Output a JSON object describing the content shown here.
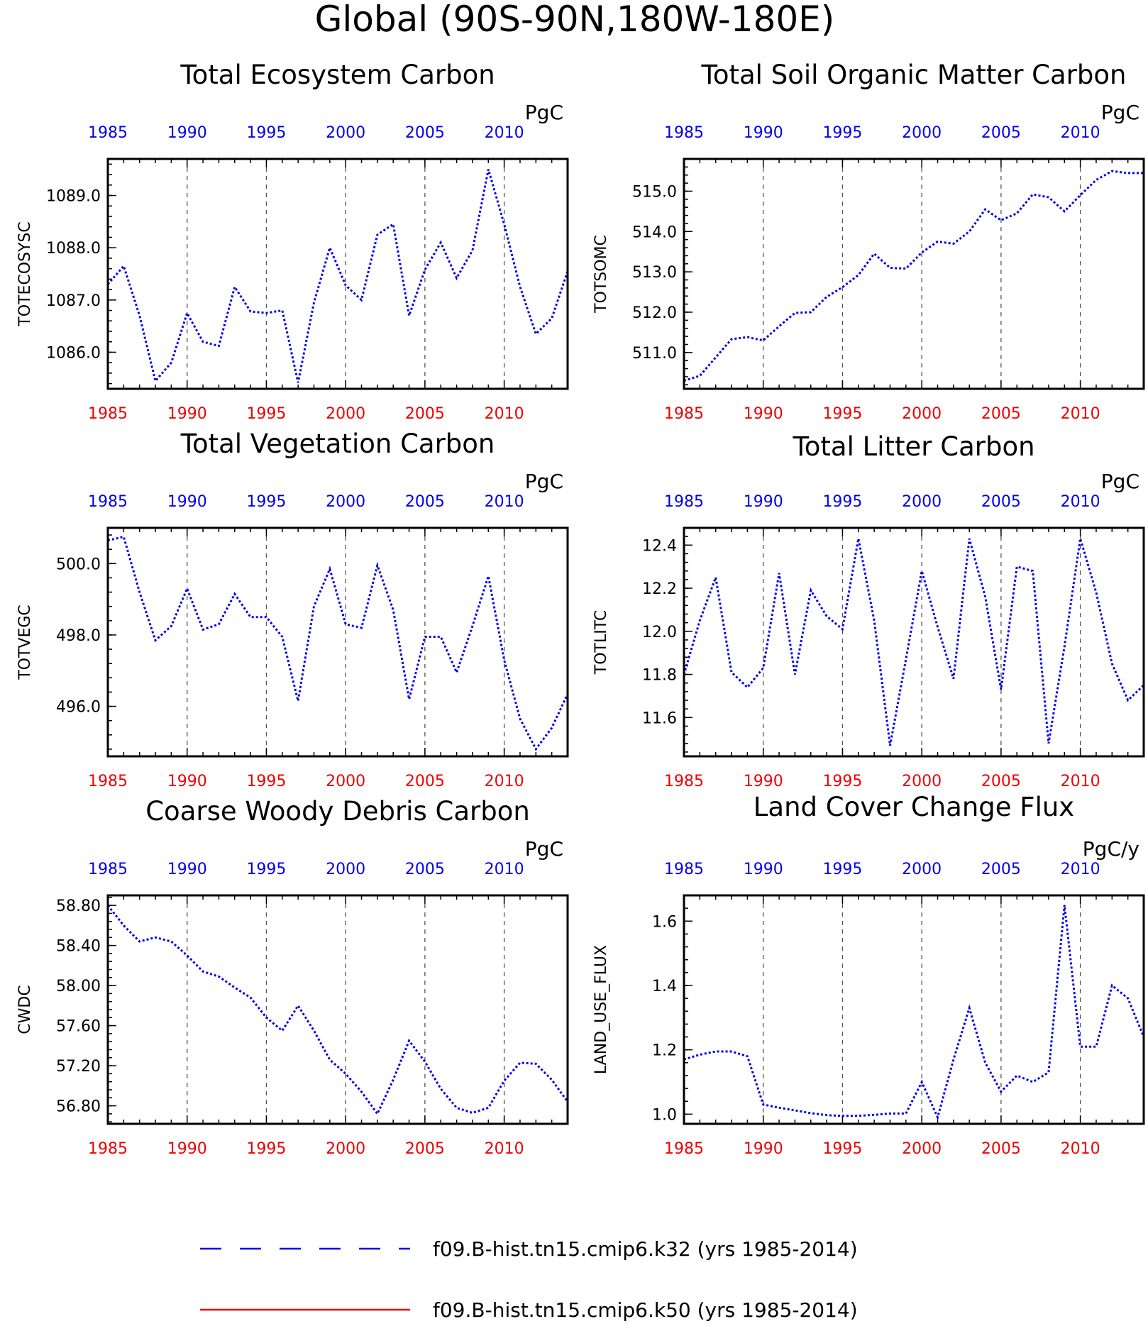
{
  "page": {
    "title": "Global (90S-90N,180W-180E)"
  },
  "colors": {
    "series_primary": "#0000ee",
    "series_secondary": "#ee0000",
    "top_ticks": "#0000ee",
    "bottom_ticks": "#ee0000"
  },
  "legend": [
    {
      "label": "f09.B-hist.tn15.cmip6.k32 (yrs 1985-2014)",
      "color": "#0000ee",
      "style": "dashed"
    },
    {
      "label": "f09.B-hist.tn15.cmip6.k50 (yrs 1985-2014)",
      "color": "#ee0000",
      "style": "solid"
    }
  ],
  "chart_data": [
    {
      "type": "line",
      "title": "Total Ecosystem Carbon",
      "units": "PgC",
      "ylabel": "TOTECOSYSC",
      "xlim": [
        1985,
        2014
      ],
      "ylim": [
        1085.3,
        1089.7
      ],
      "yticks": [
        1086.0,
        1087.0,
        1088.0,
        1089.0
      ],
      "ytick_labels": [
        "1086.0",
        "1087.0",
        "1088.0",
        "1089.0"
      ],
      "yminor": 0.2,
      "xticks": [
        1985,
        1990,
        1995,
        2000,
        2005,
        2010
      ],
      "xtick_labels": [
        "1985",
        "1990",
        "1995",
        "2000",
        "2005",
        "2010"
      ],
      "grid": "vertical dashed at major x ticks",
      "series": [
        {
          "x": [
            1985,
            1986,
            1987,
            1988,
            1989,
            1990,
            1991,
            1992,
            1993,
            1994,
            1995,
            1996,
            1997,
            1998,
            1999,
            2000,
            2001,
            2002,
            2003,
            2004,
            2005,
            2006,
            2007,
            2008,
            2009,
            2010,
            2011,
            2012,
            2013,
            2014
          ],
          "values": [
            1087.3,
            1087.65,
            1086.7,
            1085.45,
            1085.8,
            1086.75,
            1086.2,
            1086.12,
            1087.25,
            1086.78,
            1086.75,
            1086.8,
            1085.42,
            1086.95,
            1088.0,
            1087.28,
            1087.0,
            1088.25,
            1088.45,
            1086.7,
            1087.58,
            1088.1,
            1087.42,
            1087.95,
            1089.5,
            1088.45,
            1087.25,
            1086.35,
            1086.65,
            1087.55
          ]
        }
      ]
    },
    {
      "type": "line",
      "title": "Total Soil Organic Matter Carbon",
      "units": "PgC",
      "ylabel": "TOTSOMC",
      "xlim": [
        1985,
        2014
      ],
      "ylim": [
        510.1,
        515.8
      ],
      "yticks": [
        511.0,
        512.0,
        513.0,
        514.0,
        515.0
      ],
      "ytick_labels": [
        "511.0",
        "512.0",
        "513.0",
        "514.0",
        "515.0"
      ],
      "yminor": 0.2,
      "xticks": [
        1985,
        1990,
        1995,
        2000,
        2005,
        2010
      ],
      "xtick_labels": [
        "1985",
        "1990",
        "1995",
        "2000",
        "2005",
        "2010"
      ],
      "grid": "vertical dashed at major x ticks",
      "series": [
        {
          "x": [
            1985,
            1986,
            1987,
            1988,
            1989,
            1990,
            1991,
            1992,
            1993,
            1994,
            1995,
            1996,
            1997,
            1998,
            1999,
            2000,
            2001,
            2002,
            2003,
            2004,
            2005,
            2006,
            2007,
            2008,
            2009,
            2010,
            2011,
            2012,
            2013,
            2014
          ],
          "values": [
            510.3,
            510.42,
            510.88,
            511.33,
            511.38,
            511.3,
            511.65,
            511.98,
            512.0,
            512.38,
            512.62,
            512.92,
            513.45,
            513.1,
            513.08,
            513.48,
            513.75,
            513.7,
            514.0,
            514.55,
            514.28,
            514.45,
            514.92,
            514.85,
            514.5,
            514.9,
            515.28,
            515.5,
            515.45,
            515.45
          ]
        }
      ]
    },
    {
      "type": "line",
      "title": "Total Vegetation Carbon",
      "units": "PgC",
      "ylabel": "TOTVEGC",
      "xlim": [
        1985,
        2014
      ],
      "ylim": [
        494.6,
        501.0
      ],
      "yticks": [
        496.0,
        498.0,
        500.0
      ],
      "ytick_labels": [
        "496.0",
        "498.0",
        "500.0"
      ],
      "yminor": 0.4,
      "xticks": [
        1985,
        1990,
        1995,
        2000,
        2005,
        2010
      ],
      "xtick_labels": [
        "1985",
        "1990",
        "1995",
        "2000",
        "2005",
        "2010"
      ],
      "grid": "vertical dashed at major x ticks",
      "series": [
        {
          "x": [
            1985,
            1986,
            1987,
            1988,
            1989,
            1990,
            1991,
            1992,
            1993,
            1994,
            1995,
            1996,
            1997,
            1998,
            1999,
            2000,
            2001,
            2002,
            2003,
            2004,
            2005,
            2006,
            2007,
            2008,
            2009,
            2010,
            2011,
            2012,
            2013,
            2014
          ],
          "values": [
            500.65,
            500.75,
            499.2,
            497.85,
            498.25,
            499.3,
            498.15,
            498.3,
            499.15,
            498.5,
            498.5,
            497.95,
            496.15,
            498.8,
            499.85,
            498.3,
            498.2,
            499.95,
            498.7,
            496.2,
            497.95,
            497.95,
            496.95,
            498.25,
            499.65,
            497.3,
            495.65,
            494.8,
            495.4,
            496.35
          ]
        }
      ]
    },
    {
      "type": "line",
      "title": "Total Litter Carbon",
      "units": "PgC",
      "ylabel": "TOTLITC",
      "xlim": [
        1985,
        2014
      ],
      "ylim": [
        11.42,
        12.48
      ],
      "yticks": [
        11.6,
        11.8,
        12.0,
        12.2,
        12.4
      ],
      "ytick_labels": [
        "11.6",
        "11.8",
        "12.0",
        "12.2",
        "12.4"
      ],
      "yminor": 0.04,
      "xticks": [
        1985,
        1990,
        1995,
        2000,
        2005,
        2010
      ],
      "xtick_labels": [
        "1985",
        "1990",
        "1995",
        "2000",
        "2005",
        "2010"
      ],
      "grid": "vertical dashed at major x ticks",
      "series": [
        {
          "x": [
            1985,
            1986,
            1987,
            1988,
            1989,
            1990,
            1991,
            1992,
            1993,
            1994,
            1995,
            1996,
            1997,
            1998,
            1999,
            2000,
            2001,
            2002,
            2003,
            2004,
            2005,
            2006,
            2007,
            2008,
            2009,
            2010,
            2011,
            2012,
            2013,
            2014
          ],
          "values": [
            11.8,
            12.05,
            12.25,
            11.81,
            11.74,
            11.83,
            12.27,
            11.8,
            12.19,
            12.07,
            12.01,
            12.43,
            12.05,
            11.47,
            11.87,
            12.28,
            12.02,
            11.78,
            12.43,
            12.16,
            11.73,
            12.3,
            12.28,
            11.48,
            11.93,
            12.43,
            12.18,
            11.85,
            11.68,
            11.75
          ]
        }
      ]
    },
    {
      "type": "line",
      "title": "Coarse Woody Debris Carbon",
      "units": "PgC",
      "ylabel": "CWDC",
      "xlim": [
        1985,
        2014
      ],
      "ylim": [
        56.62,
        58.9
      ],
      "yticks": [
        56.8,
        57.2,
        57.6,
        58.0,
        58.4,
        58.8
      ],
      "ytick_labels": [
        "56.80",
        "57.20",
        "57.60",
        "58.00",
        "58.40",
        "58.80"
      ],
      "yminor": 0.08,
      "xticks": [
        1985,
        1990,
        1995,
        2000,
        2005,
        2010
      ],
      "xtick_labels": [
        "1985",
        "1990",
        "1995",
        "2000",
        "2005",
        "2010"
      ],
      "grid": "vertical dashed at major x ticks",
      "series": [
        {
          "x": [
            1985,
            1986,
            1987,
            1988,
            1989,
            1990,
            1991,
            1992,
            1993,
            1994,
            1995,
            1996,
            1997,
            1998,
            1999,
            2000,
            2001,
            2002,
            2003,
            2004,
            2005,
            2006,
            2007,
            2008,
            2009,
            2010,
            2011,
            2012,
            2013,
            2014
          ],
          "values": [
            58.8,
            58.6,
            58.44,
            58.48,
            58.44,
            58.3,
            58.14,
            58.09,
            57.98,
            57.88,
            57.68,
            57.55,
            57.8,
            57.55,
            57.26,
            57.12,
            56.94,
            56.72,
            57.06,
            57.45,
            57.24,
            56.97,
            56.78,
            56.73,
            56.78,
            57.05,
            57.23,
            57.22,
            57.06,
            56.84
          ]
        }
      ]
    },
    {
      "type": "line",
      "title": "Land Cover Change Flux",
      "units": "PgC/y",
      "ylabel": "LAND_USE_FLUX",
      "xlim": [
        1985,
        2014
      ],
      "ylim": [
        0.97,
        1.68
      ],
      "yticks": [
        1.0,
        1.2,
        1.4,
        1.6
      ],
      "ytick_labels": [
        "1.0",
        "1.2",
        "1.4",
        "1.6"
      ],
      "yminor": 0.04,
      "xticks": [
        1985,
        1990,
        1995,
        2000,
        2005,
        2010
      ],
      "xtick_labels": [
        "1985",
        "1990",
        "1995",
        "2000",
        "2005",
        "2010"
      ],
      "grid": "vertical dashed at major x ticks",
      "series": [
        {
          "x": [
            1985,
            1986,
            1987,
            1988,
            1989,
            1990,
            1991,
            1992,
            1993,
            1994,
            1995,
            1996,
            1997,
            1998,
            1999,
            2000,
            2001,
            2002,
            2003,
            2004,
            2005,
            2006,
            2007,
            2008,
            2009,
            2010,
            2011,
            2012,
            2013,
            2014
          ],
          "values": [
            1.17,
            1.185,
            1.195,
            1.195,
            1.18,
            1.03,
            1.02,
            1.012,
            1.003,
            0.997,
            0.995,
            0.995,
            0.998,
            1.002,
            1.002,
            1.1,
            0.99,
            1.17,
            1.33,
            1.16,
            1.07,
            1.12,
            1.1,
            1.13,
            1.65,
            1.21,
            1.21,
            1.4,
            1.36,
            1.24
          ]
        }
      ]
    }
  ]
}
